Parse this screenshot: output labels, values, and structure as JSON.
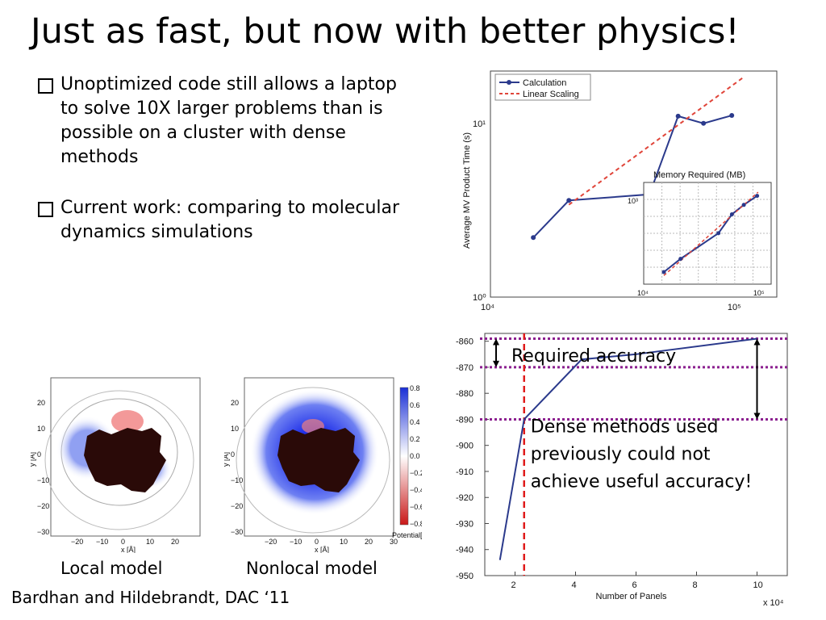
{
  "slide": {
    "title": "Just as fast, but now with better physics!",
    "bullets": [
      "Unoptimized code still allows a laptop to solve 10X larger problems than is possible on a cluster with dense methods",
      "Current work: comparing to molecular dynamics simulations"
    ],
    "captions": {
      "left": "Local model",
      "right": "Nonlocal model"
    },
    "footer": "Bardhan and Hildebrandt, DAC ‘11"
  },
  "chart_data": [
    {
      "type": "line",
      "ylabel": "Average MV Product Time (s)",
      "xscale": "log",
      "yscale": "log",
      "xlim": [
        10000,
        150000
      ],
      "ylim": [
        1,
        20
      ],
      "x_ticks": [
        "10⁴",
        "10⁵"
      ],
      "y_ticks": [
        "10⁰",
        "10¹"
      ],
      "legend": [
        "Calculation",
        "Linear Scaling"
      ],
      "legend_position": "top-left",
      "series": [
        {
          "name": "Calculation",
          "color": "#2b3a8c",
          "x": [
            15000,
            21000,
            45000,
            59000,
            75000,
            98000
          ],
          "y": [
            2.2,
            3.6,
            3.9,
            11,
            10,
            11.1
          ]
        },
        {
          "name": "Linear Scaling",
          "color": "#e0453a",
          "style": "dashed",
          "x": [
            21000,
            110000
          ],
          "y": [
            3.4,
            18.5
          ]
        }
      ],
      "inset": {
        "title": "Memory Required (MB)",
        "xscale": "log",
        "yscale": "log",
        "x_ticks": [
          "10⁴",
          "10⁵"
        ],
        "y_ticks": [
          "10³"
        ],
        "series": [
          {
            "name": "Calculation",
            "x": [
              15000,
              21000,
              45000,
              59000,
              75000,
              98000
            ],
            "y": [
              90,
              140,
              330,
              620,
              850,
              1150
            ]
          }
        ],
        "grid": true
      }
    },
    {
      "type": "line",
      "xlabel": "Number of Panels",
      "x_multiplier": "x 10⁴",
      "xlim": [
        1.0,
        11.0
      ],
      "ylim": [
        -950,
        -857
      ],
      "x_ticks": [
        2,
        4,
        6,
        8,
        10
      ],
      "y_ticks": [
        -860,
        -870,
        -880,
        -890,
        -900,
        -910,
        -920,
        -930,
        -940,
        -950
      ],
      "series": [
        {
          "name": "",
          "color": "#2b3a8c",
          "x": [
            1.5,
            2.3,
            4.2,
            6.0,
            10.0
          ],
          "y": [
            -944,
            -890,
            -867,
            -865,
            -859
          ]
        }
      ],
      "reference_lines": {
        "horizontal": [
          -859,
          -870,
          -890
        ],
        "vertical": [
          2.3
        ]
      },
      "annotations": {
        "required": "Required accuracy",
        "dense": [
          "Dense methods used",
          "previously could not",
          "achieve useful accuracy!"
        ]
      }
    }
  ],
  "maps": {
    "left_ticks_y": [
      "20",
      "10",
      "0",
      "−10",
      "−20",
      "−30"
    ],
    "left_ticks_x": [
      "−20",
      "−10",
      "0",
      "10",
      "20"
    ],
    "right_ticks_y": [
      "20",
      "10",
      "0",
      "−10",
      "−20",
      "−30"
    ],
    "right_ticks_x": [
      "−20",
      "−10",
      "0",
      "10",
      "20",
      "30"
    ],
    "xlabel": "x [Å]",
    "ylabel": "y [Å]",
    "colorbar_ticks": [
      "0.8",
      "0.6",
      "0.4",
      "0.2",
      "0.0",
      "−0.2",
      "−0.4",
      "−0.6",
      "−0.8"
    ],
    "colorbar_label": "Potential[V]"
  }
}
